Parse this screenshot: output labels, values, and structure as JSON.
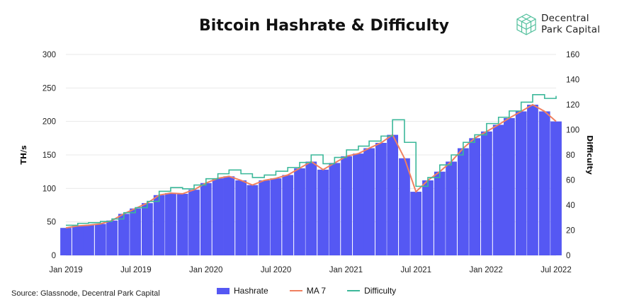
{
  "header": {
    "title": "Bitcoin Hashrate & Difficulty",
    "brand_line1": "Decentral",
    "brand_line2": "Park Capital",
    "logo_icon": "cube-logo-icon"
  },
  "footer": {
    "source": "Source: Glassnode, Decentral Park Capital"
  },
  "colors": {
    "hashrate": "#5558f3",
    "ma7": "#f08060",
    "difficulty": "#3cb89a",
    "grid": "#e9e9e9",
    "logo": "#4fbf9b"
  },
  "chart_data": {
    "type": "area",
    "title": "Bitcoin Hashrate & Difficulty",
    "ylabel": "TH/s",
    "y2label": "Difficulty",
    "ylim": [
      0,
      300
    ],
    "y2lim": [
      0,
      160
    ],
    "yticks": [
      0,
      50,
      100,
      150,
      200,
      250,
      300
    ],
    "y2ticks": [
      0,
      20,
      40,
      60,
      80,
      100,
      120,
      140,
      160
    ],
    "xlim": [
      "2019-01-01",
      "2022-07-01"
    ],
    "xticks": [
      "Jan 2019",
      "Jul 2019",
      "Jan 2020",
      "Jul 2020",
      "Jan 2021",
      "Jul 2021",
      "Jan 2022",
      "Jul 2022"
    ],
    "grid": true,
    "legend_position": "bottom",
    "series": [
      {
        "name": "Hashrate",
        "axis": "left",
        "style": "bars",
        "points": [
          [
            "2019-01-01",
            41
          ],
          [
            "2019-02-01",
            44
          ],
          [
            "2019-03-01",
            45
          ],
          [
            "2019-04-01",
            47
          ],
          [
            "2019-05-01",
            52
          ],
          [
            "2019-06-01",
            62
          ],
          [
            "2019-07-01",
            70
          ],
          [
            "2019-08-01",
            78
          ],
          [
            "2019-09-01",
            90
          ],
          [
            "2019-10-01",
            93
          ],
          [
            "2019-11-01",
            92
          ],
          [
            "2019-12-01",
            98
          ],
          [
            "2020-01-01",
            108
          ],
          [
            "2020-02-01",
            115
          ],
          [
            "2020-03-01",
            118
          ],
          [
            "2020-04-01",
            112
          ],
          [
            "2020-05-01",
            105
          ],
          [
            "2020-06-01",
            112
          ],
          [
            "2020-07-01",
            115
          ],
          [
            "2020-08-01",
            120
          ],
          [
            "2020-09-01",
            130
          ],
          [
            "2020-10-01",
            140
          ],
          [
            "2020-11-01",
            128
          ],
          [
            "2020-12-01",
            138
          ],
          [
            "2021-01-01",
            148
          ],
          [
            "2021-02-01",
            152
          ],
          [
            "2021-03-01",
            160
          ],
          [
            "2021-04-01",
            168
          ],
          [
            "2021-05-01",
            180
          ],
          [
            "2021-06-01",
            145
          ],
          [
            "2021-07-01",
            95
          ],
          [
            "2021-08-01",
            112
          ],
          [
            "2021-09-01",
            125
          ],
          [
            "2021-10-01",
            140
          ],
          [
            "2021-11-01",
            160
          ],
          [
            "2021-12-01",
            175
          ],
          [
            "2022-01-01",
            185
          ],
          [
            "2022-02-01",
            195
          ],
          [
            "2022-03-01",
            205
          ],
          [
            "2022-04-01",
            215
          ],
          [
            "2022-05-01",
            225
          ],
          [
            "2022-06-01",
            215
          ],
          [
            "2022-07-01",
            200
          ]
        ]
      },
      {
        "name": "MA 7",
        "axis": "left",
        "style": "line",
        "points": [
          [
            "2019-01-01",
            41
          ],
          [
            "2019-02-01",
            44
          ],
          [
            "2019-03-01",
            45
          ],
          [
            "2019-04-01",
            47
          ],
          [
            "2019-05-01",
            52
          ],
          [
            "2019-06-01",
            62
          ],
          [
            "2019-07-01",
            70
          ],
          [
            "2019-08-01",
            78
          ],
          [
            "2019-09-01",
            90
          ],
          [
            "2019-10-01",
            93
          ],
          [
            "2019-11-01",
            92
          ],
          [
            "2019-12-01",
            98
          ],
          [
            "2020-01-01",
            108
          ],
          [
            "2020-02-01",
            115
          ],
          [
            "2020-03-01",
            118
          ],
          [
            "2020-04-01",
            112
          ],
          [
            "2020-05-01",
            105
          ],
          [
            "2020-06-01",
            112
          ],
          [
            "2020-07-01",
            115
          ],
          [
            "2020-08-01",
            120
          ],
          [
            "2020-09-01",
            130
          ],
          [
            "2020-10-01",
            140
          ],
          [
            "2020-11-01",
            128
          ],
          [
            "2020-12-01",
            138
          ],
          [
            "2021-01-01",
            148
          ],
          [
            "2021-02-01",
            152
          ],
          [
            "2021-03-01",
            160
          ],
          [
            "2021-04-01",
            168
          ],
          [
            "2021-05-01",
            180
          ],
          [
            "2021-06-01",
            145
          ],
          [
            "2021-07-01",
            95
          ],
          [
            "2021-08-01",
            112
          ],
          [
            "2021-09-01",
            125
          ],
          [
            "2021-10-01",
            140
          ],
          [
            "2021-11-01",
            160
          ],
          [
            "2021-12-01",
            175
          ],
          [
            "2022-01-01",
            185
          ],
          [
            "2022-02-01",
            195
          ],
          [
            "2022-03-01",
            205
          ],
          [
            "2022-04-01",
            215
          ],
          [
            "2022-05-01",
            225
          ],
          [
            "2022-06-01",
            215
          ],
          [
            "2022-07-01",
            200
          ]
        ]
      },
      {
        "name": "Difficulty",
        "axis": "right",
        "style": "step",
        "points": [
          [
            "2019-01-01",
            24
          ],
          [
            "2019-02-01",
            25.5
          ],
          [
            "2019-03-01",
            26
          ],
          [
            "2019-04-01",
            27
          ],
          [
            "2019-05-01",
            29
          ],
          [
            "2019-06-01",
            34
          ],
          [
            "2019-07-01",
            38
          ],
          [
            "2019-08-01",
            43
          ],
          [
            "2019-09-01",
            51
          ],
          [
            "2019-10-01",
            54
          ],
          [
            "2019-11-01",
            53
          ],
          [
            "2019-12-01",
            56
          ],
          [
            "2020-01-01",
            61
          ],
          [
            "2020-02-01",
            65
          ],
          [
            "2020-03-01",
            68
          ],
          [
            "2020-04-01",
            65
          ],
          [
            "2020-05-01",
            62
          ],
          [
            "2020-06-01",
            64
          ],
          [
            "2020-07-01",
            67
          ],
          [
            "2020-08-01",
            70
          ],
          [
            "2020-09-01",
            74
          ],
          [
            "2020-10-01",
            80
          ],
          [
            "2020-11-01",
            73
          ],
          [
            "2020-12-01",
            78
          ],
          [
            "2021-01-01",
            84
          ],
          [
            "2021-02-01",
            87
          ],
          [
            "2021-03-01",
            91
          ],
          [
            "2021-04-01",
            95
          ],
          [
            "2021-05-01",
            108
          ],
          [
            "2021-06-01",
            90
          ],
          [
            "2021-07-01",
            55
          ],
          [
            "2021-08-01",
            62
          ],
          [
            "2021-09-01",
            72
          ],
          [
            "2021-10-01",
            80
          ],
          [
            "2021-11-01",
            90
          ],
          [
            "2021-12-01",
            96
          ],
          [
            "2022-01-01",
            105
          ],
          [
            "2022-02-01",
            110
          ],
          [
            "2022-03-01",
            115
          ],
          [
            "2022-04-01",
            122
          ],
          [
            "2022-05-01",
            128
          ],
          [
            "2022-06-01",
            125
          ],
          [
            "2022-07-01",
            127
          ]
        ]
      }
    ]
  }
}
